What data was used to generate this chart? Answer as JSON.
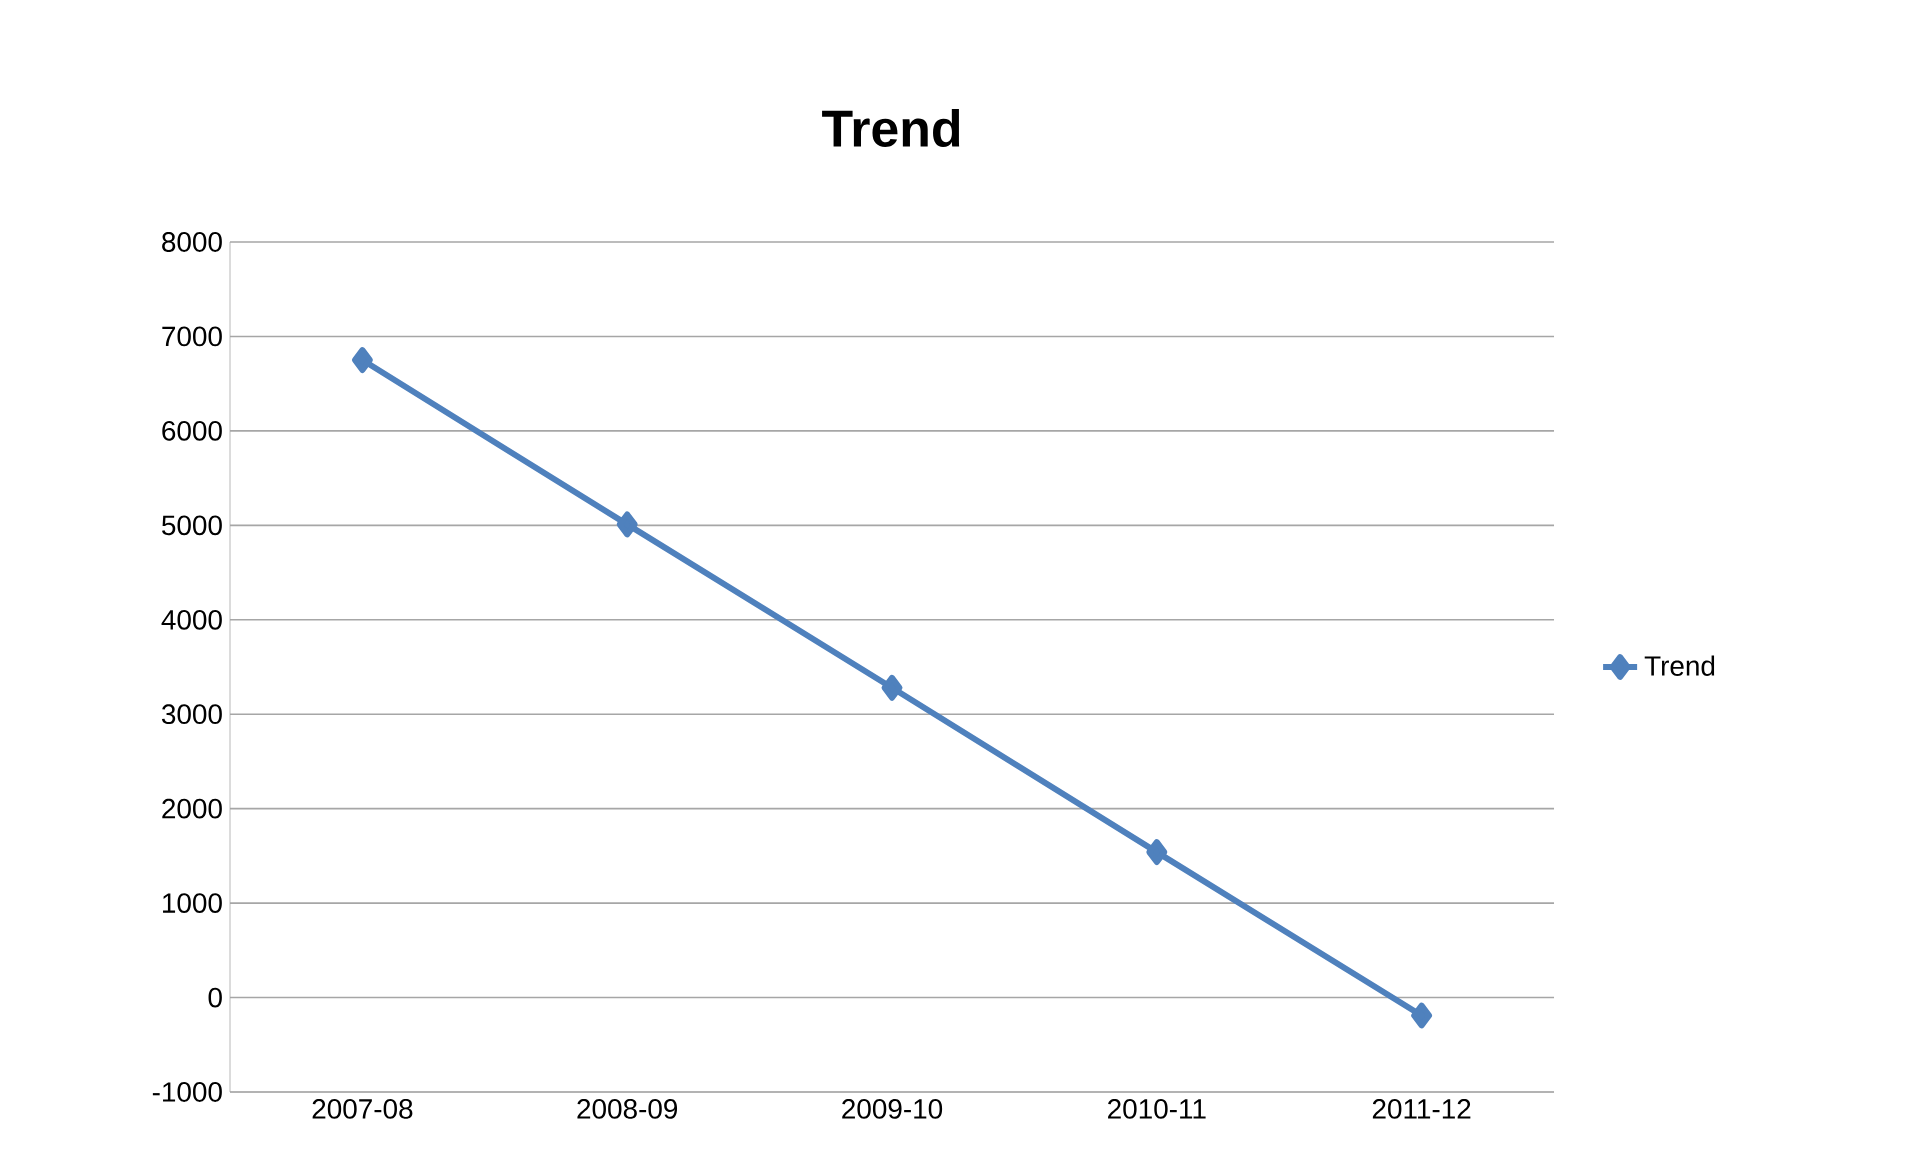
{
  "chart_data": {
    "type": "line",
    "title": "Trend",
    "categories": [
      "2007-08",
      "2008-09",
      "2009-10",
      "2010-11",
      "2011-12"
    ],
    "series": [
      {
        "name": "Trend",
        "color": "#4f81bd",
        "values": [
          6750,
          5010,
          3280,
          1540,
          -190
        ]
      }
    ],
    "ylim": [
      -1000,
      8000
    ],
    "yticks": [
      -1000,
      0,
      1000,
      2000,
      3000,
      4000,
      5000,
      6000,
      7000,
      8000
    ],
    "grid": "y",
    "legend": "right",
    "marker": "diamond",
    "line_style": "solid"
  }
}
